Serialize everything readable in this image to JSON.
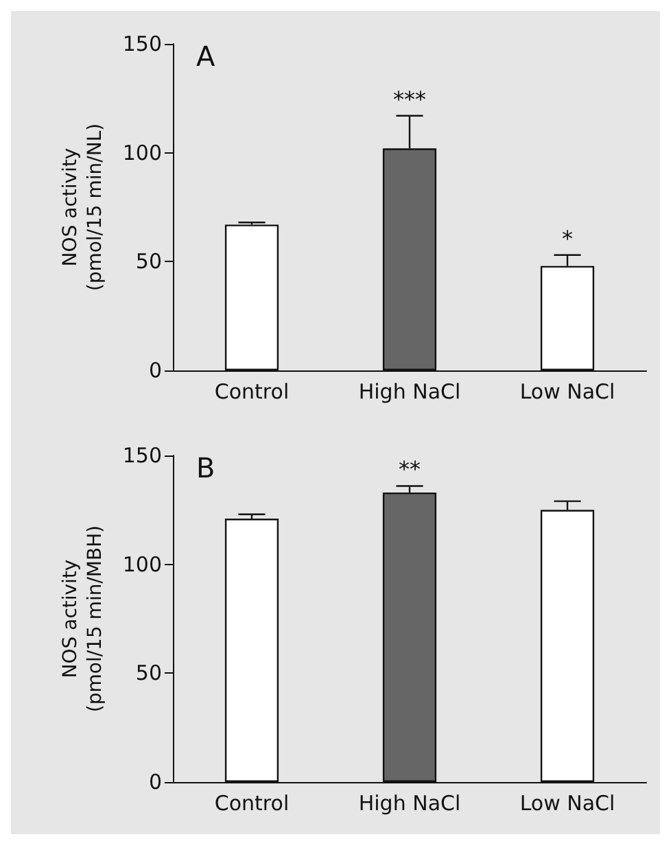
{
  "chart_data": [
    {
      "type": "bar",
      "title": "A",
      "ylabel": "NOS activity\n(pmol/15 min/NL)",
      "categories": [
        "Control",
        "High NaCl",
        "Low NaCl"
      ],
      "values": [
        67,
        102,
        48
      ],
      "errors": [
        1,
        15,
        5
      ],
      "colors": [
        "#ffffff",
        "#666666",
        "#ffffff"
      ],
      "ylim": [
        0,
        150
      ],
      "yticks": [
        0,
        50,
        100,
        150
      ],
      "grid": false,
      "annotations": [
        {
          "text": "***",
          "x": "High NaCl",
          "y": 117
        },
        {
          "text": "*",
          "x": "Low NaCl",
          "y": 53
        }
      ]
    },
    {
      "type": "bar",
      "title": "B",
      "ylabel": "NOS activity\n(pmol/15 min/MBH)",
      "categories": [
        "Control",
        "High NaCl",
        "Low NaCl"
      ],
      "values": [
        121,
        133,
        125
      ],
      "errors": [
        2,
        3,
        4
      ],
      "colors": [
        "#ffffff",
        "#666666",
        "#ffffff"
      ],
      "ylim": [
        0,
        150
      ],
      "yticks": [
        0,
        50,
        100,
        150
      ],
      "grid": false,
      "annotations": [
        {
          "text": "**",
          "x": "High NaCl",
          "y": 136
        }
      ]
    }
  ]
}
